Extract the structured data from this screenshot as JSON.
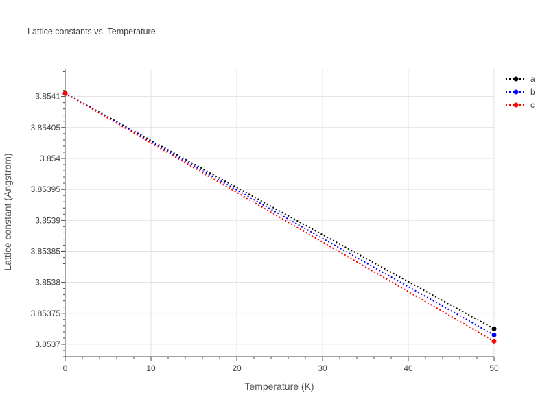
{
  "chart_data": {
    "type": "line",
    "title": "Lattice constants vs. Temperature",
    "xlabel": "Temperature (K)",
    "ylabel": "Lattice constant (Angstrom)",
    "xlim": [
      0,
      50
    ],
    "ylim": [
      3.85368,
      3.854145
    ],
    "x_ticks": [
      0,
      10,
      20,
      30,
      40,
      50
    ],
    "x_tick_labels": [
      "0",
      "10",
      "20",
      "30",
      "40",
      "50"
    ],
    "y_ticks": [
      3.8537,
      3.85375,
      3.8538,
      3.85385,
      3.8539,
      3.85395,
      3.854,
      3.85405,
      3.8541
    ],
    "y_tick_labels": [
      "3.8537",
      "3.85375",
      "3.8538",
      "3.85385",
      "3.8539",
      "3.85395",
      "3.854",
      "3.85405",
      "3.8541"
    ],
    "grid": true,
    "legend_position": "top-right",
    "series": [
      {
        "name": "a",
        "color": "#000000",
        "x": [
          0,
          50
        ],
        "y": [
          3.854105,
          3.853725
        ]
      },
      {
        "name": "b",
        "color": "#0000ff",
        "x": [
          0,
          50
        ],
        "y": [
          3.854105,
          3.853715
        ]
      },
      {
        "name": "c",
        "color": "#ff0000",
        "x": [
          0,
          50
        ],
        "y": [
          3.854105,
          3.853705
        ]
      }
    ]
  }
}
